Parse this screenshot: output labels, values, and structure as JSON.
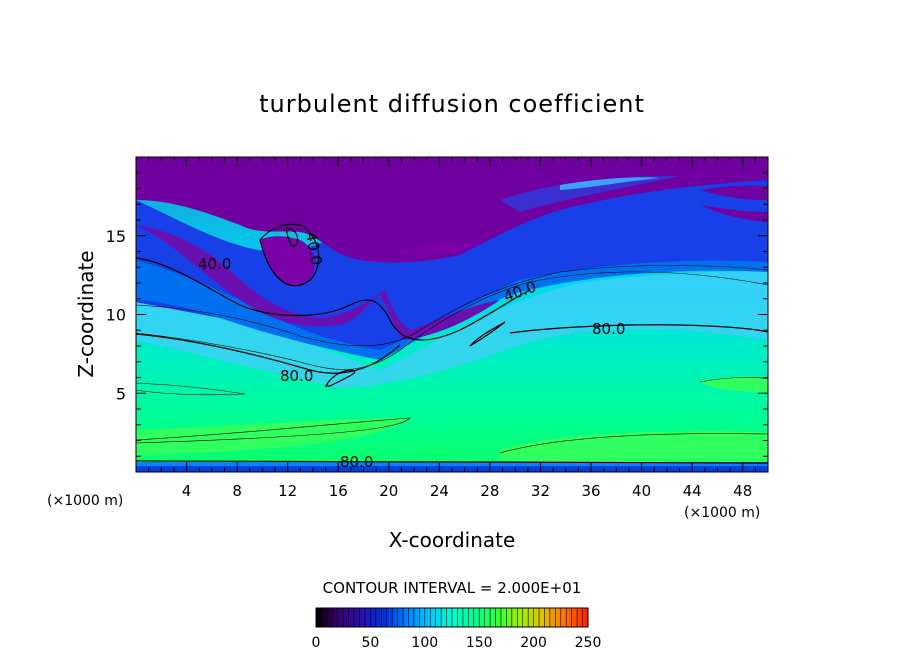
{
  "chart_data": {
    "type": "heatmap",
    "title": "turbulent diffusion coefficient",
    "xlabel": "X-coordinate",
    "ylabel": "Z-coordinate",
    "x_unit_left": "(×1000 m)",
    "x_unit_right": "(×1000 m)",
    "xlim": [
      0,
      50
    ],
    "ylim": [
      0,
      20
    ],
    "x_ticks": [
      "4",
      "8",
      "12",
      "16",
      "20",
      "24",
      "28",
      "32",
      "36",
      "40",
      "44",
      "48"
    ],
    "y_ticks": [
      "5",
      "10",
      "15"
    ],
    "contour_interval_label": "CONTOUR INTERVAL = 2.000E+01",
    "contour_labels": [
      "40.0",
      "40.0",
      "40.0",
      "80.0",
      "80.0",
      "80.0"
    ],
    "colorbar": {
      "min": 0,
      "max": 250,
      "ticks": [
        "0",
        "50",
        "100",
        "150",
        "200",
        "250"
      ],
      "colors": [
        "#000000",
        "#3a0070",
        "#2a10b0",
        "#0030e0",
        "#0080ff",
        "#00c8ff",
        "#00ffd0",
        "#00ff90",
        "#30ff40",
        "#a0f000",
        "#e0c000",
        "#ff7000",
        "#ff2000"
      ]
    }
  }
}
